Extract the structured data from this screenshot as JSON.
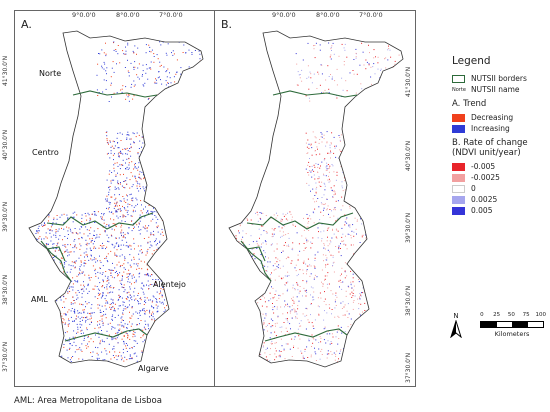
{
  "panels": [
    {
      "label": "A.",
      "lon_ticks": [
        "9°0.0'0",
        "8°0.0'0",
        "7°0.0'0"
      ]
    },
    {
      "label": "B.",
      "lon_ticks": [
        "9°0.0'0",
        "8°0.0'0",
        "7°0.0'0"
      ]
    }
  ],
  "lat_ticks": [
    "41°30.0'N",
    "40°30.0'N",
    "39°30.0'N",
    "38°30.0'N",
    "37°30.0'N"
  ],
  "regions": {
    "norte": "Norte",
    "centro": "Centro",
    "aml": "AML",
    "alentejo": "Alentejo",
    "algarve": "Algarve"
  },
  "legend": {
    "title": "Legend",
    "borders_label": "NUTSII borders",
    "name_sample": "Norte",
    "name_label": "NUTSII name",
    "trend_title": "A. Trend",
    "trend_items": [
      {
        "label": "Decreasing",
        "color": "#f0401c"
      },
      {
        "label": "Increasing",
        "color": "#2f3bd6"
      }
    ],
    "rate_title_1": "B. Rate of change",
    "rate_title_2": "(NDVI unit/year)",
    "rate_items": [
      {
        "label": "-0.005",
        "color": "#e8242a"
      },
      {
        "label": "-0.0025",
        "color": "#f2a0a0"
      },
      {
        "label": "0",
        "color": "#ffffff"
      },
      {
        "label": "0.0025",
        "color": "#a6a6ee"
      },
      {
        "label": "0.005",
        "color": "#3434d8"
      }
    ]
  },
  "north_label": "N",
  "scale": {
    "ticks": [
      "0",
      "25",
      "50",
      "75",
      "100"
    ],
    "unit": "Kilometers"
  },
  "footnote": "AML: Area Metropolitana de Lisboa",
  "colors": {
    "border": "#2d6a3a",
    "decrease": "#f0401c",
    "increase": "#2f3bd6"
  }
}
